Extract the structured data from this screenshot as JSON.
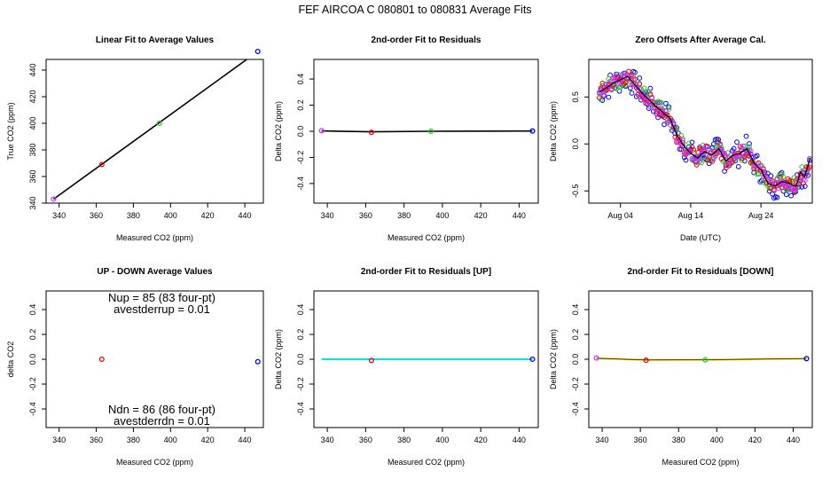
{
  "page_title": "FEF   AIRCOA C   080801 to 080831   Average Fits",
  "colors": {
    "purple": "#cc33ff",
    "red": "#ee0000",
    "green": "#22cc22",
    "blue": "#0000ee",
    "black": "#000000",
    "cyan": "#00e5ee",
    "yellow": "#f2c200"
  },
  "chart_data": [
    {
      "id": "p1",
      "type": "scatter",
      "title": "Linear Fit to Average Values",
      "xlabel": "Measured CO2 (ppm)",
      "ylabel": "True CO2 (ppm)",
      "xlim": [
        333,
        450
      ],
      "ylim": [
        340,
        448
      ],
      "xticks": [
        340,
        360,
        380,
        400,
        420,
        440
      ],
      "yticks": [
        340,
        360,
        380,
        400,
        420,
        440
      ],
      "fit_line": [
        [
          337,
          343
        ],
        [
          447,
          454
        ]
      ],
      "points": [
        {
          "x": 337,
          "y": 343,
          "color": "purple"
        },
        {
          "x": 363,
          "y": 369,
          "color": "red"
        },
        {
          "x": 394,
          "y": 400,
          "color": "green"
        },
        {
          "x": 447,
          "y": 454,
          "color": "blue"
        }
      ]
    },
    {
      "id": "p2",
      "type": "scatter",
      "title": "2nd-order Fit to Residuals",
      "xlabel": "Measured CO2 (ppm)",
      "ylabel": "Delta CO2 (ppm)",
      "xlim": [
        333,
        450
      ],
      "ylim": [
        -0.55,
        0.55
      ],
      "xticks": [
        340,
        360,
        380,
        400,
        420,
        440
      ],
      "yticks": [
        -0.4,
        -0.2,
        0.0,
        0.2,
        0.4
      ],
      "fit_line": [
        [
          337,
          0.003
        ],
        [
          363,
          -0.004
        ],
        [
          394,
          0.0
        ],
        [
          447,
          0.002
        ]
      ],
      "points": [
        {
          "x": 337,
          "y": 0.005,
          "color": "purple"
        },
        {
          "x": 363,
          "y": -0.008,
          "color": "red"
        },
        {
          "x": 394,
          "y": 0.0,
          "color": "green"
        },
        {
          "x": 447,
          "y": 0.002,
          "color": "blue"
        }
      ]
    },
    {
      "id": "p3",
      "type": "scatter",
      "title": "Zero Offsets After Average Cal.",
      "xlabel": "Date (UTC)",
      "ylabel": "Delta CO2 (ppm)",
      "xlim": [
        -1.5,
        30.3
      ],
      "ylim": [
        -0.63,
        0.9
      ],
      "xticks": [
        {
          "v": 3,
          "label": "Aug 04"
        },
        {
          "v": 13,
          "label": "Aug 14"
        },
        {
          "v": 23,
          "label": "Aug 24"
        }
      ],
      "yticks": [
        -0.5,
        0.0,
        0.5
      ],
      "trend": [
        [
          0,
          0.55
        ],
        [
          2,
          0.65
        ],
        [
          4,
          0.72
        ],
        [
          6,
          0.55
        ],
        [
          8,
          0.4
        ],
        [
          10,
          0.28
        ],
        [
          11,
          0.1
        ],
        [
          12,
          -0.02
        ],
        [
          13,
          -0.1
        ],
        [
          14,
          -0.15
        ],
        [
          15,
          -0.08
        ],
        [
          16,
          -0.12
        ],
        [
          17,
          -0.05
        ],
        [
          18,
          -0.18
        ],
        [
          19,
          -0.12
        ],
        [
          20,
          -0.1
        ],
        [
          21,
          -0.05
        ],
        [
          22,
          -0.2
        ],
        [
          23,
          -0.28
        ],
        [
          24,
          -0.42
        ],
        [
          25,
          -0.45
        ],
        [
          26,
          -0.4
        ],
        [
          27,
          -0.42
        ],
        [
          28,
          -0.45
        ],
        [
          28.6,
          -0.3
        ],
        [
          29.2,
          -0.35
        ],
        [
          29.6,
          -0.25
        ],
        [
          30,
          -0.15
        ]
      ],
      "series": [
        {
          "name": "purple",
          "color": "purple",
          "jitter": 0.06
        },
        {
          "name": "red",
          "color": "red",
          "jitter": 0.08
        },
        {
          "name": "green",
          "color": "green",
          "jitter": 0.09
        },
        {
          "name": "blue",
          "color": "blue",
          "jitter": 0.14
        }
      ]
    },
    {
      "id": "p4",
      "type": "scatter",
      "title": "UP - DOWN Average Values",
      "xlabel": "Measured CO2 (ppm)",
      "ylabel": "delta CO2",
      "xlim": [
        333,
        450
      ],
      "ylim": [
        -0.55,
        0.55
      ],
      "xticks": [
        340,
        360,
        380,
        400,
        420,
        440
      ],
      "yticks": [
        -0.4,
        -0.2,
        0.0,
        0.2,
        0.4
      ],
      "points": [
        {
          "x": 363,
          "y": 0.0,
          "color": "red"
        },
        {
          "x": 447,
          "y": -0.02,
          "color": "blue"
        }
      ],
      "annotations": {
        "nup": "Nup = 85 (83 four-pt)",
        "avestderrup": "avestderrup =  0.01",
        "ndn": "Ndn = 86 (86 four-pt)",
        "avestderrdn": "avestderrdn =  0.01"
      }
    },
    {
      "id": "p5",
      "type": "scatter",
      "title": "2nd-order Fit to Residuals [UP]",
      "xlabel": "Measured CO2 (ppm)",
      "ylabel": "Delta CO2 (ppm)",
      "xlim": [
        333,
        450
      ],
      "ylim": [
        -0.55,
        0.55
      ],
      "xticks": [
        340,
        360,
        380,
        400,
        420,
        440
      ],
      "yticks": [
        -0.4,
        -0.2,
        0.0,
        0.2,
        0.4
      ],
      "fit_line": [
        [
          337,
          0.0
        ],
        [
          447,
          0.0
        ]
      ],
      "fit_color": "cyan",
      "points": [
        {
          "x": 363,
          "y": -0.01,
          "color": "red"
        },
        {
          "x": 447,
          "y": 0.0,
          "color": "blue"
        }
      ]
    },
    {
      "id": "p6",
      "type": "scatter",
      "title": "2nd-order Fit to Residuals [DOWN]",
      "xlabel": "Measured CO2 (ppm)",
      "ylabel": "Delta CO2 (ppm)",
      "xlim": [
        333,
        450
      ],
      "ylim": [
        -0.55,
        0.55
      ],
      "xticks": [
        340,
        360,
        380,
        400,
        420,
        440
      ],
      "yticks": [
        -0.4,
        -0.2,
        0.0,
        0.2,
        0.4
      ],
      "fit_line": [
        [
          337,
          0.008
        ],
        [
          363,
          -0.006
        ],
        [
          394,
          -0.004
        ],
        [
          447,
          0.006
        ]
      ],
      "fit_color": "yellow",
      "points": [
        {
          "x": 337,
          "y": 0.01,
          "color": "purple"
        },
        {
          "x": 363,
          "y": -0.008,
          "color": "red"
        },
        {
          "x": 394,
          "y": -0.005,
          "color": "green"
        },
        {
          "x": 447,
          "y": 0.005,
          "color": "blue"
        }
      ]
    }
  ]
}
